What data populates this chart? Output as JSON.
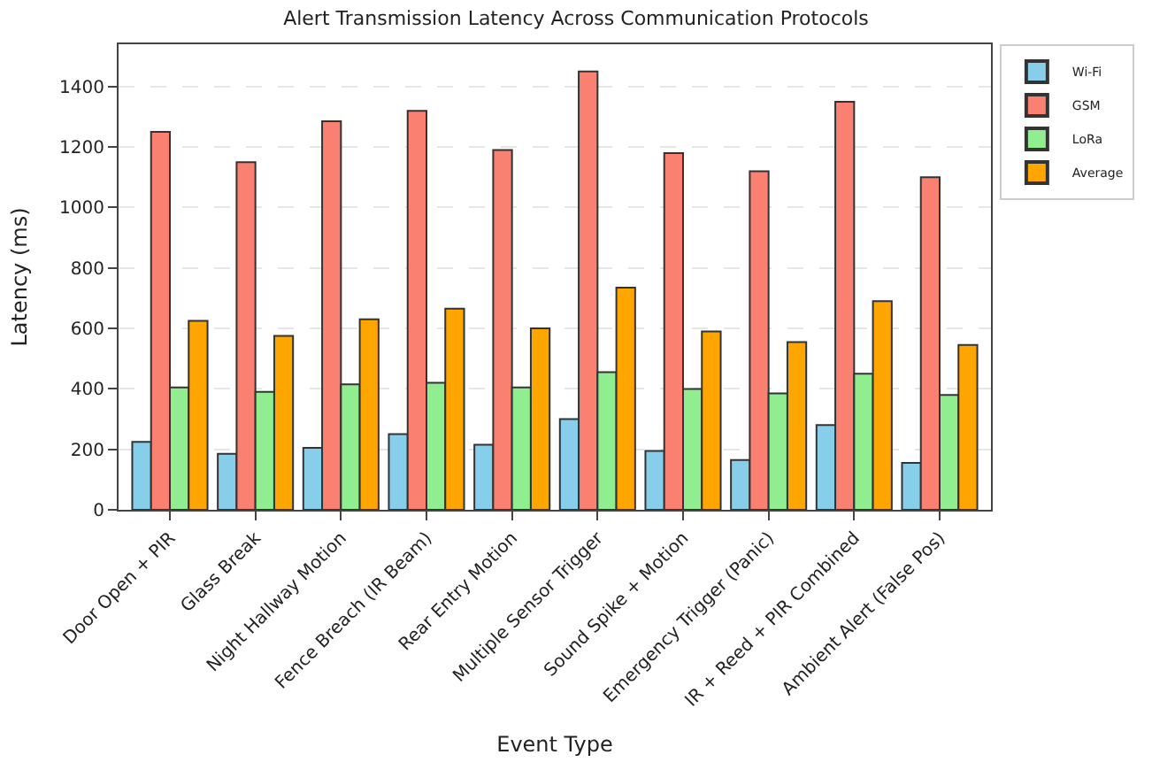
{
  "chart_data": {
    "type": "bar",
    "title": "Alert Transmission Latency Across Communication Protocols",
    "xlabel": "Event Type",
    "ylabel": "Latency (ms)",
    "categories": [
      "Door Open + PIR",
      "Glass Break",
      "Night Hallway Motion",
      "Fence Breach (IR Beam)",
      "Rear Entry Motion",
      "Multiple Sensor Trigger",
      "Sound Spike + Motion",
      "Emergency Trigger (Panic)",
      "IR + Reed + PIR Combined",
      "Ambient Alert (False Pos)"
    ],
    "series": [
      {
        "name": "Wi-Fi",
        "color": "#87ceeb",
        "values": [
          225,
          185,
          205,
          250,
          215,
          300,
          195,
          165,
          280,
          155
        ]
      },
      {
        "name": "GSM",
        "color": "#fa8072",
        "values": [
          1250,
          1150,
          1285,
          1320,
          1190,
          1450,
          1180,
          1120,
          1350,
          1100
        ]
      },
      {
        "name": "LoRa",
        "color": "#90ee90",
        "values": [
          405,
          390,
          415,
          420,
          405,
          455,
          400,
          385,
          450,
          380
        ]
      },
      {
        "name": "Average",
        "color": "#ffa500",
        "values": [
          625,
          575,
          630,
          665,
          600,
          735,
          590,
          555,
          690,
          545
        ]
      }
    ],
    "ylim": [
      0,
      1540
    ],
    "yticks": [
      0,
      200,
      400,
      600,
      800,
      1000,
      1200,
      1400
    ],
    "grid": "y",
    "legend": "top right"
  }
}
